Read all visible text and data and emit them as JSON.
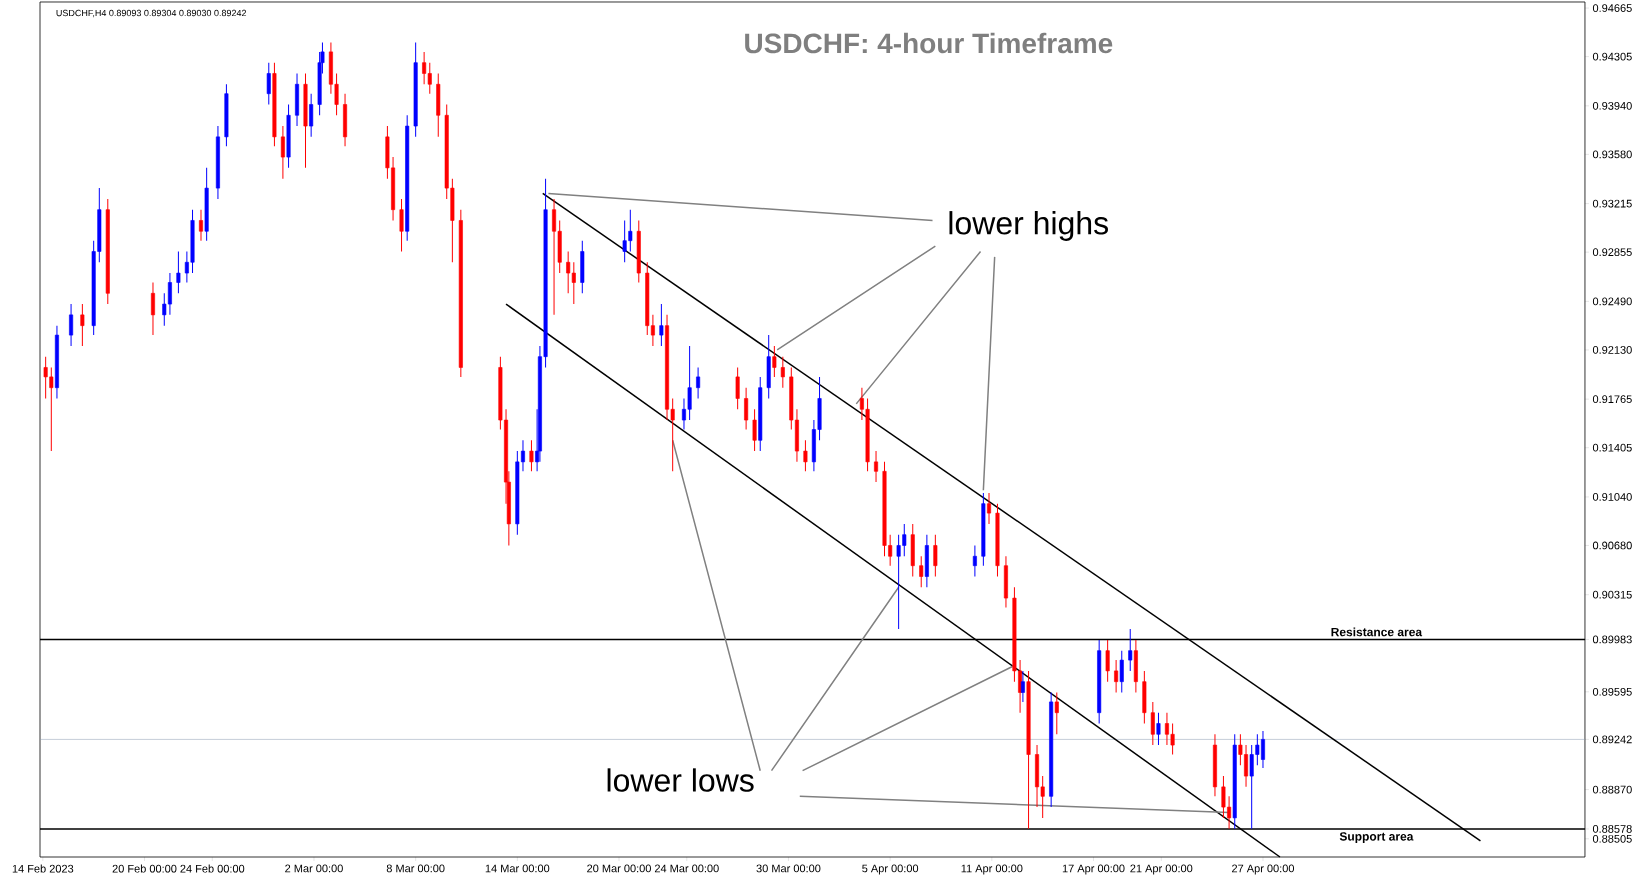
{
  "chart_data": {
    "type": "candlestick",
    "title": "USDCHF: 4-hour Timeframe",
    "annotations": [
      "USDCHF,H4  0.89093 0.89304 0.89030 0.89242",
      "lower highs",
      "lower lows"
    ],
    "x": [
      "2023-02-14T04:00",
      "2023-02-14T12:00",
      "2023-02-14T20:00",
      "2023-02-15T16:00",
      "2023-02-16T08:00",
      "2023-02-17T00:00",
      "2023-02-17T08:00",
      "2023-02-17T20:00",
      "2023-02-20T12:00",
      "2023-02-21T04:00",
      "2023-02-21T12:00",
      "2023-02-22T00:00",
      "2023-02-22T12:00",
      "2023-02-22T20:00",
      "2023-02-23T08:00",
      "2023-02-23T16:00",
      "2023-02-24T08:00",
      "2023-02-24T20:00",
      "2023-02-27T08:00",
      "2023-02-27T16:00",
      "2023-02-28T04:00",
      "2023-02-28T12:00",
      "2023-03-01T00:00",
      "2023-03-01T12:00",
      "2023-03-01T20:00",
      "2023-03-02T08:00",
      "2023-03-02T12:00",
      "2023-03-03T00:00",
      "2023-03-03T08:00",
      "2023-03-03T20:00",
      "2023-03-06T08:00",
      "2023-03-06T16:00",
      "2023-03-07T04:00",
      "2023-03-07T12:00",
      "2023-03-08T00:00",
      "2023-03-08T12:00",
      "2023-03-08T20:00",
      "2023-03-09T08:00",
      "2023-03-09T20:00",
      "2023-03-10T04:00",
      "2023-03-10T16:00",
      "2023-03-13T00:00",
      "2023-03-13T08:00",
      "2023-03-13T12:00",
      "2023-03-14T00:00",
      "2023-03-14T08:00",
      "2023-03-14T20:00",
      "2023-03-15T04:00",
      "2023-03-15T08:00",
      "2023-03-15T16:00",
      "2023-03-16T04:00",
      "2023-03-16T12:00",
      "2023-03-17T00:00",
      "2023-03-17T08:00",
      "2023-03-17T20:00",
      "2023-03-20T08:00",
      "2023-03-20T16:00",
      "2023-03-21T04:00",
      "2023-03-21T16:00",
      "2023-03-22T00:00",
      "2023-03-22T12:00",
      "2023-03-22T20:00",
      "2023-03-23T04:00",
      "2023-03-23T20:00",
      "2023-03-24T04:00",
      "2023-03-24T16:00",
      "2023-03-27T00:00",
      "2023-03-27T12:00",
      "2023-03-28T00:00",
      "2023-03-28T08:00",
      "2023-03-28T20:00",
      "2023-03-29T04:00",
      "2023-03-29T16:00",
      "2023-03-30T04:00",
      "2023-03-30T12:00",
      "2023-03-31T00:00",
      "2023-03-31T12:00",
      "2023-03-31T20:00",
      "2023-04-03T08:00",
      "2023-04-03T16:00",
      "2023-04-04T04:00",
      "2023-04-04T16:00",
      "2023-04-05T00:00",
      "2023-04-05T12:00",
      "2023-04-05T20:00",
      "2023-04-06T08:00",
      "2023-04-06T20:00",
      "2023-04-07T04:00",
      "2023-04-07T16:00",
      "2023-04-10T00:00",
      "2023-04-10T12:00",
      "2023-04-10T20:00",
      "2023-04-11T08:00",
      "2023-04-11T20:00",
      "2023-04-12T08:00",
      "2023-04-12T16:00",
      "2023-04-12T20:00",
      "2023-04-13T04:00",
      "2023-04-13T16:00",
      "2023-04-14T00:00",
      "2023-04-14T12:00",
      "2023-04-14T20:00",
      "2023-04-17T08:00",
      "2023-04-17T20:00",
      "2023-04-18T08:00",
      "2023-04-18T16:00",
      "2023-04-19T04:00",
      "2023-04-19T12:00",
      "2023-04-20T00:00",
      "2023-04-20T12:00",
      "2023-04-20T20:00",
      "2023-04-21T08:00",
      "2023-04-21T16:00",
      "2023-04-24T04:00",
      "2023-04-24T16:00",
      "2023-04-25T00:00",
      "2023-04-25T08:00",
      "2023-04-25T16:00",
      "2023-04-26T00:00",
      "2023-04-26T08:00",
      "2023-04-26T16:00",
      "2023-04-27T00:00"
    ],
    "ohlc": [
      [
        0.92,
        0.9208,
        0.9177,
        0.9193
      ],
      [
        0.9193,
        0.92,
        0.9138,
        0.9185
      ],
      [
        0.9185,
        0.9231,
        0.9177,
        0.9224
      ],
      [
        0.9224,
        0.9247,
        0.9216,
        0.9239
      ],
      [
        0.9239,
        0.9247,
        0.9216,
        0.9231
      ],
      [
        0.9231,
        0.9294,
        0.9224,
        0.9286
      ],
      [
        0.9286,
        0.9333,
        0.9278,
        0.9317
      ],
      [
        0.9317,
        0.9325,
        0.9247,
        0.9255
      ],
      [
        0.9255,
        0.9263,
        0.9224,
        0.9239
      ],
      [
        0.9239,
        0.9255,
        0.9231,
        0.9247
      ],
      [
        0.9247,
        0.927,
        0.9239,
        0.9263
      ],
      [
        0.9263,
        0.9286,
        0.9255,
        0.927
      ],
      [
        0.927,
        0.9286,
        0.9263,
        0.9278
      ],
      [
        0.9278,
        0.9317,
        0.927,
        0.9309
      ],
      [
        0.9309,
        0.9317,
        0.9294,
        0.9301
      ],
      [
        0.9301,
        0.9348,
        0.9294,
        0.9333
      ],
      [
        0.9333,
        0.9379,
        0.9325,
        0.9371
      ],
      [
        0.9371,
        0.941,
        0.9364,
        0.9403
      ],
      [
        0.9403,
        0.9426,
        0.9395,
        0.9418
      ],
      [
        0.9418,
        0.9426,
        0.9364,
        0.9371
      ],
      [
        0.9371,
        0.9379,
        0.934,
        0.9356
      ],
      [
        0.9356,
        0.9395,
        0.9348,
        0.9387
      ],
      [
        0.9387,
        0.9418,
        0.9379,
        0.941
      ],
      [
        0.941,
        0.9418,
        0.9348,
        0.9379
      ],
      [
        0.9379,
        0.9403,
        0.9371,
        0.9395
      ],
      [
        0.9395,
        0.9434,
        0.9387,
        0.9426
      ],
      [
        0.9426,
        0.9441,
        0.9418,
        0.9434
      ],
      [
        0.9434,
        0.9441,
        0.9403,
        0.941
      ],
      [
        0.941,
        0.9418,
        0.9387,
        0.9395
      ],
      [
        0.9395,
        0.9403,
        0.9364,
        0.9371
      ],
      [
        0.9371,
        0.9379,
        0.934,
        0.9348
      ],
      [
        0.9348,
        0.9356,
        0.9309,
        0.9317
      ],
      [
        0.9317,
        0.9325,
        0.9286,
        0.9301
      ],
      [
        0.9301,
        0.9387,
        0.9294,
        0.9379
      ],
      [
        0.9379,
        0.9441,
        0.9371,
        0.9426
      ],
      [
        0.9426,
        0.9434,
        0.941,
        0.9418
      ],
      [
        0.9418,
        0.9426,
        0.9403,
        0.941
      ],
      [
        0.941,
        0.9418,
        0.9371,
        0.9387
      ],
      [
        0.9387,
        0.9395,
        0.9325,
        0.9333
      ],
      [
        0.9333,
        0.934,
        0.9278,
        0.9309
      ],
      [
        0.9309,
        0.9317,
        0.9193,
        0.92
      ],
      [
        0.92,
        0.9208,
        0.9154,
        0.9161
      ],
      [
        0.9161,
        0.9169,
        0.9099,
        0.9115
      ],
      [
        0.9115,
        0.9123,
        0.9068,
        0.9084
      ],
      [
        0.9084,
        0.9138,
        0.9076,
        0.913
      ],
      [
        0.913,
        0.9146,
        0.9123,
        0.9138
      ],
      [
        0.9138,
        0.9146,
        0.9123,
        0.913
      ],
      [
        0.913,
        0.9169,
        0.9123,
        0.9138
      ],
      [
        0.9138,
        0.9216,
        0.913,
        0.9208
      ],
      [
        0.9208,
        0.934,
        0.92,
        0.9317
      ],
      [
        0.9317,
        0.9325,
        0.9239,
        0.9301
      ],
      [
        0.9301,
        0.9309,
        0.927,
        0.9278
      ],
      [
        0.9278,
        0.9286,
        0.9255,
        0.927
      ],
      [
        0.927,
        0.9278,
        0.9247,
        0.9263
      ],
      [
        0.9263,
        0.9294,
        0.9255,
        0.9286
      ],
      [
        0.9286,
        0.9309,
        0.9278,
        0.9294
      ],
      [
        0.9294,
        0.9317,
        0.9286,
        0.9301
      ],
      [
        0.9301,
        0.9309,
        0.9263,
        0.927
      ],
      [
        0.927,
        0.9278,
        0.9224,
        0.9231
      ],
      [
        0.9231,
        0.9239,
        0.9216,
        0.9224
      ],
      [
        0.9224,
        0.9247,
        0.9216,
        0.9231
      ],
      [
        0.9231,
        0.9239,
        0.9161,
        0.9169
      ],
      [
        0.9169,
        0.9177,
        0.9123,
        0.9161
      ],
      [
        0.9161,
        0.9177,
        0.9154,
        0.9169
      ],
      [
        0.9169,
        0.9216,
        0.9161,
        0.9185
      ],
      [
        0.9185,
        0.92,
        0.9177,
        0.9193
      ],
      [
        0.9193,
        0.92,
        0.9169,
        0.9177
      ],
      [
        0.9177,
        0.9185,
        0.9154,
        0.9161
      ],
      [
        0.9161,
        0.9169,
        0.9138,
        0.9146
      ],
      [
        0.9146,
        0.9193,
        0.9138,
        0.9185
      ],
      [
        0.9185,
        0.9224,
        0.9177,
        0.9208
      ],
      [
        0.9208,
        0.9216,
        0.9193,
        0.92
      ],
      [
        0.92,
        0.9208,
        0.9185,
        0.9193
      ],
      [
        0.9193,
        0.92,
        0.9154,
        0.9161
      ],
      [
        0.9161,
        0.9169,
        0.913,
        0.9138
      ],
      [
        0.9138,
        0.9146,
        0.9123,
        0.913
      ],
      [
        0.913,
        0.9161,
        0.9123,
        0.9154
      ],
      [
        0.9154,
        0.9193,
        0.9146,
        0.9177
      ],
      [
        0.9177,
        0.9185,
        0.9161,
        0.9169
      ],
      [
        0.9169,
        0.9177,
        0.9123,
        0.913
      ],
      [
        0.913,
        0.9138,
        0.9115,
        0.9123
      ],
      [
        0.9123,
        0.913,
        0.906,
        0.9068
      ],
      [
        0.9068,
        0.9076,
        0.9053,
        0.906
      ],
      [
        0.906,
        0.9076,
        0.9006,
        0.9068
      ],
      [
        0.9068,
        0.9084,
        0.906,
        0.9076
      ],
      [
        0.9076,
        0.9084,
        0.9045,
        0.9053
      ],
      [
        0.9053,
        0.906,
        0.9037,
        0.9045
      ],
      [
        0.9045,
        0.9076,
        0.9037,
        0.9068
      ],
      [
        0.9068,
        0.9076,
        0.9045,
        0.9053
      ],
      [
        0.9053,
        0.9068,
        0.9045,
        0.906
      ],
      [
        0.906,
        0.9107,
        0.9053,
        0.9099
      ],
      [
        0.9099,
        0.9107,
        0.9084,
        0.9092
      ],
      [
        0.9092,
        0.9099,
        0.9045,
        0.9053
      ],
      [
        0.9053,
        0.906,
        0.9022,
        0.9029
      ],
      [
        0.9029,
        0.9037,
        0.8967,
        0.8975
      ],
      [
        0.8975,
        0.8983,
        0.8944,
        0.8959
      ],
      [
        0.8959,
        0.8975,
        0.8952,
        0.8967
      ],
      [
        0.8967,
        0.8975,
        0.8858,
        0.8913
      ],
      [
        0.8913,
        0.892,
        0.8874,
        0.8889
      ],
      [
        0.8889,
        0.8897,
        0.8866,
        0.8882
      ],
      [
        0.8882,
        0.8959,
        0.8874,
        0.8952
      ],
      [
        0.8952,
        0.8959,
        0.8928,
        0.8944
      ],
      [
        0.8944,
        0.8998,
        0.8936,
        0.899
      ],
      [
        0.899,
        0.8998,
        0.8967,
        0.8975
      ],
      [
        0.8975,
        0.8983,
        0.8959,
        0.8967
      ],
      [
        0.8967,
        0.899,
        0.8959,
        0.8983
      ],
      [
        0.8983,
        0.9006,
        0.8975,
        0.899
      ],
      [
        0.899,
        0.8998,
        0.8959,
        0.8967
      ],
      [
        0.8967,
        0.8975,
        0.8936,
        0.8944
      ],
      [
        0.8944,
        0.8952,
        0.892,
        0.8928
      ],
      [
        0.8928,
        0.8944,
        0.892,
        0.8936
      ],
      [
        0.8936,
        0.8944,
        0.892,
        0.8928
      ],
      [
        0.8928,
        0.8936,
        0.8913,
        0.892
      ],
      [
        0.892,
        0.8928,
        0.8882,
        0.8889
      ],
      [
        0.8889,
        0.8897,
        0.8866,
        0.8874
      ],
      [
        0.8874,
        0.8882,
        0.8858,
        0.8866
      ],
      [
        0.8866,
        0.8928,
        0.8858,
        0.892
      ],
      [
        0.892,
        0.8928,
        0.8905,
        0.8913
      ],
      [
        0.8913,
        0.892,
        0.8889,
        0.8897
      ],
      [
        0.8897,
        0.892,
        0.8858,
        0.8913
      ],
      [
        0.8913,
        0.8928,
        0.8905,
        0.892
      ],
      [
        0.89093,
        0.89304,
        0.8903,
        0.89242
      ]
    ],
    "colors": [
      "#ff0000",
      "#ff0000",
      "#0000ff",
      "#0000ff",
      "#ff0000",
      "#0000ff",
      "#0000ff",
      "#ff0000",
      "#ff0000",
      "#0000ff",
      "#0000ff",
      "#0000ff",
      "#0000ff",
      "#0000ff",
      "#ff0000",
      "#0000ff",
      "#0000ff",
      "#0000ff",
      "#0000ff",
      "#ff0000",
      "#ff0000",
      "#0000ff",
      "#0000ff",
      "#ff0000",
      "#0000ff",
      "#0000ff",
      "#0000ff",
      "#ff0000",
      "#ff0000",
      "#ff0000",
      "#ff0000",
      "#ff0000",
      "#ff0000",
      "#0000ff",
      "#0000ff",
      "#ff0000",
      "#ff0000",
      "#ff0000",
      "#ff0000",
      "#ff0000",
      "#ff0000",
      "#ff0000",
      "#ff0000",
      "#ff0000",
      "#0000ff",
      "#0000ff",
      "#ff0000",
      "#0000ff",
      "#0000ff",
      "#0000ff",
      "#ff0000",
      "#ff0000",
      "#ff0000",
      "#ff0000",
      "#0000ff",
      "#0000ff",
      "#0000ff",
      "#ff0000",
      "#ff0000",
      "#ff0000",
      "#0000ff",
      "#ff0000",
      "#ff0000",
      "#0000ff",
      "#0000ff",
      "#0000ff",
      "#ff0000",
      "#ff0000",
      "#ff0000",
      "#0000ff",
      "#0000ff",
      "#ff0000",
      "#ff0000",
      "#ff0000",
      "#ff0000",
      "#ff0000",
      "#0000ff",
      "#0000ff",
      "#ff0000",
      "#ff0000",
      "#ff0000",
      "#ff0000",
      "#ff0000",
      "#0000ff",
      "#0000ff",
      "#ff0000",
      "#ff0000",
      "#0000ff",
      "#ff0000",
      "#0000ff",
      "#0000ff",
      "#ff0000",
      "#ff0000",
      "#ff0000",
      "#ff0000",
      "#ff0000",
      "#0000ff",
      "#ff0000",
      "#ff0000",
      "#ff0000",
      "#0000ff",
      "#ff0000",
      "#0000ff",
      "#ff0000",
      "#ff0000",
      "#0000ff",
      "#0000ff",
      "#ff0000",
      "#ff0000",
      "#ff0000",
      "#0000ff",
      "#ff0000",
      "#ff0000",
      "#ff0000",
      "#ff0000",
      "#ff0000",
      "#0000ff",
      "#ff0000",
      "#ff0000",
      "#0000ff",
      "#0000ff",
      "#0000ff"
    ],
    "series": [
      {
        "type": "line",
        "color": "#000000",
        "x": [
          "2023-03-15T12:00",
          "2023-05-09T20:00"
        ],
        "values": [
          0.9329,
          0.8849
        ]
      },
      {
        "type": "line",
        "color": "#000000",
        "x": [
          "2023-03-13T08:00",
          "2023-04-28T00:00"
        ],
        "values": [
          0.9247,
          0.8837
        ]
      },
      {
        "type": "line",
        "color": "#808080",
        "x": [
          "2023-04-07T12:00",
          "2023-03-15T20:00",
          null,
          "2023-04-07T16:00",
          "2023-03-29T08:00",
          null,
          "2023-04-10T08:00",
          "2023-04-03T00:00",
          null,
          "2023-04-11T04:00",
          "2023-04-10T12:00"
        ],
        "values": [
          0.9309,
          0.9329,
          null,
          0.929,
          0.9213,
          null,
          0.9286,
          0.9173,
          null,
          0.9282,
          0.9109
        ]
      },
      {
        "type": "line",
        "color": "#808080",
        "x": [
          "2023-03-28T08:00",
          "2023-03-23T04:00",
          null,
          "2023-03-29T00:00",
          "2023-04-05T12:00",
          null,
          "2023-03-30T20:00",
          "2023-04-12T08:00",
          null,
          "2023-03-30T16:00",
          "2023-04-25T00:00"
        ],
        "values": [
          0.8901,
          0.9146,
          null,
          0.8901,
          0.9037,
          null,
          0.8901,
          0.8979,
          null,
          0.8882,
          0.887
        ]
      }
    ],
    "ref_lines": [
      {
        "axis": "y",
        "value": 0.89983,
        "label": "Resistance area",
        "color": "#000000"
      },
      {
        "axis": "y",
        "value": 0.88578,
        "label": "Support area",
        "color": "#000000"
      },
      {
        "axis": "y",
        "value": 0.89242,
        "color": "#8a9bb0"
      }
    ],
    "xlim": [
      "2023-02-13T20:00",
      "2023-05-16"
    ],
    "xticks": [
      {
        "value": "2023-02-14",
        "label": "14 Feb 2023"
      },
      {
        "value": "2023-02-20",
        "label": "20 Feb 00:00"
      },
      {
        "value": "2023-02-24",
        "label": "24 Feb 00:00"
      },
      {
        "value": "2023-03-02",
        "label": "2 Mar 00:00"
      },
      {
        "value": "2023-03-08",
        "label": "8 Mar 00:00"
      },
      {
        "value": "2023-03-14",
        "label": "14 Mar 00:00"
      },
      {
        "value": "2023-03-20",
        "label": "20 Mar 00:00"
      },
      {
        "value": "2023-03-24",
        "label": "24 Mar 00:00"
      },
      {
        "value": "2023-03-30",
        "label": "30 Mar 00:00"
      },
      {
        "value": "2023-04-05",
        "label": "5 Apr 00:00"
      },
      {
        "value": "2023-04-11",
        "label": "11 Apr 00:00"
      },
      {
        "value": "2023-04-17",
        "label": "17 Apr 00:00"
      },
      {
        "value": "2023-04-21",
        "label": "21 Apr 00:00"
      },
      {
        "value": "2023-04-27",
        "label": "27 Apr 00:00"
      }
    ],
    "ylim": [
      0.8837,
      0.9471
    ],
    "yticks": [
      0.94665,
      0.94305,
      {
        "value": 0.9394,
        "label": "0.93940"
      },
      {
        "value": 0.9358,
        "label": "0.93580"
      },
      0.93215,
      0.92855,
      {
        "value": 0.9249,
        "label": "0.92490"
      },
      {
        "value": 0.9213,
        "label": "0.92130"
      },
      0.91765,
      0.91405,
      {
        "value": 0.9104,
        "label": "0.91040"
      },
      {
        "value": 0.9068,
        "label": "0.90680"
      },
      0.90315,
      0.89983,
      0.89595,
      0.89242,
      {
        "value": 0.8887,
        "label": "0.88870"
      },
      0.88578,
      0.88505
    ]
  }
}
